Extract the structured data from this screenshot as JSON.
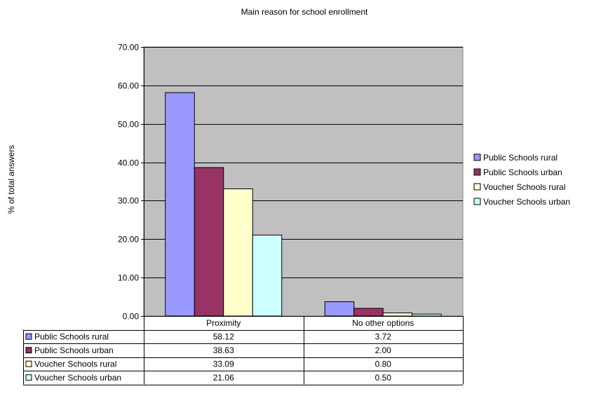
{
  "chart_data": {
    "type": "bar",
    "title": "Main reason for school enrollment",
    "ylabel": "% of total answers",
    "xlabel": "",
    "ylim": [
      0,
      70
    ],
    "ytick_step": 10,
    "ytick_format_decimals": 2,
    "grid": true,
    "plot_background": "#c0c0c0",
    "legend_position": "right",
    "categories": [
      "Proximity",
      "No other options"
    ],
    "series": [
      {
        "name": "Public Schools rural",
        "values": [
          58.12,
          3.72
        ],
        "color": "#9999ff"
      },
      {
        "name": "Public Schools urban",
        "values": [
          38.63,
          2.0
        ],
        "color": "#993366"
      },
      {
        "name": "Voucher Schools rural",
        "values": [
          33.09,
          0.8
        ],
        "color": "#ffffcc"
      },
      {
        "name": "Voucher Schools urban",
        "values": [
          21.06,
          0.5
        ],
        "color": "#ccffff"
      }
    ],
    "data_table": true
  }
}
